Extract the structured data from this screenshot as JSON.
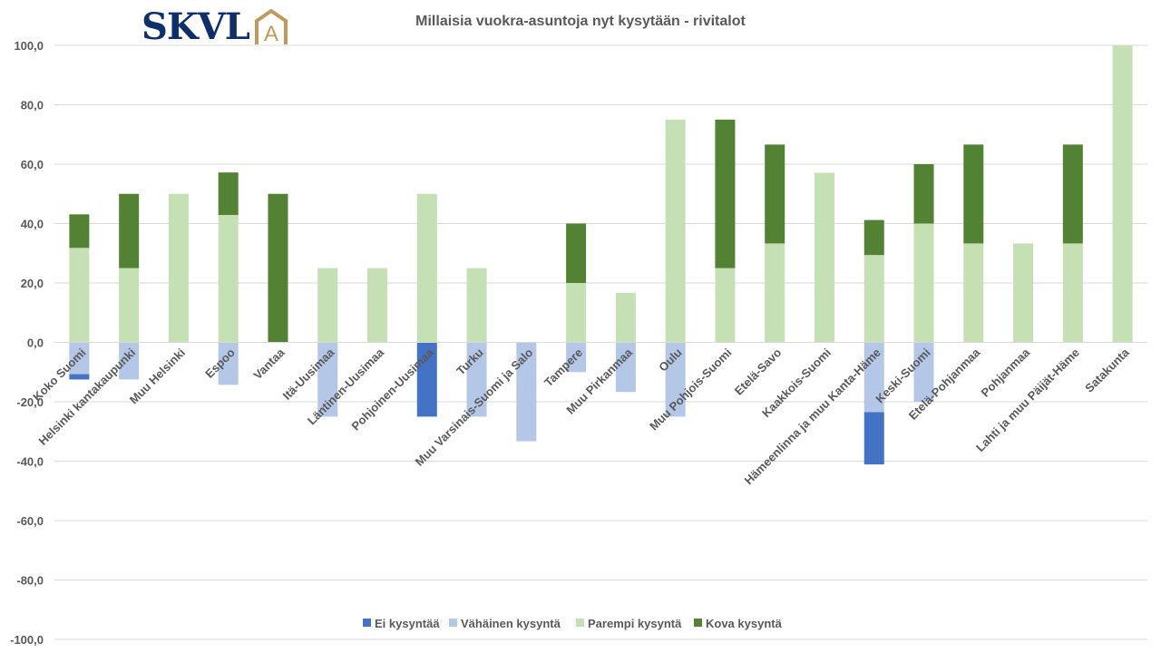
{
  "logo": {
    "text": "SKVL",
    "mark": "A"
  },
  "chart_data": {
    "type": "bar",
    "stacked": true,
    "title": "Millaisia vuokra-asuntoja nyt kysytään - rivitalot",
    "xlabel": "",
    "ylabel": "",
    "ylim": [
      -100,
      100
    ],
    "yticks": [
      100,
      80,
      60,
      40,
      20,
      0,
      -20,
      -40,
      -60,
      -80,
      -100
    ],
    "ytick_labels": [
      "100,0",
      "80,0",
      "60,0",
      "40,0",
      "20,0",
      "0,0",
      "-20,0",
      "-40,0",
      "-60,0",
      "-80,0",
      "-100,0"
    ],
    "grid": true,
    "legend_position": "bottom",
    "categories": [
      "Koko Suomi",
      "Helsinki kantakaupunki",
      "Muu Helsinki",
      "Espoo",
      "Vantaa",
      "Itä-Uusimaa",
      "Läntinen-Uusimaa",
      "Pohjoinen-Uusimaa",
      "Turku",
      "Muu Varsinais-Suomi ja Salo",
      "Tampere",
      "Muu Pirkanmaa",
      "Oulu",
      "Muu Pohjois-Suomi",
      "Etelä-Savo",
      "Kaakkois-Suomi",
      "Hämeenlinna ja muu Kanta-Häme",
      "Keski-Suomi",
      "Etelä-Pohjanmaa",
      "Pohjanmaa",
      "Lahti ja muu Päijät-Häme",
      "Satakunta"
    ],
    "series": [
      {
        "name": "Ei kysyntää",
        "color": "#4472c4",
        "values": [
          -1.8,
          0,
          0,
          0,
          0,
          0,
          0,
          -25,
          0,
          0,
          0,
          0,
          0,
          0,
          0,
          0,
          -17.6,
          0,
          0,
          0,
          0,
          0
        ]
      },
      {
        "name": "Vähäinen kysyntä",
        "color": "#b4c7e7",
        "values": [
          -10.7,
          -12.5,
          0,
          -14.3,
          0,
          -25,
          0,
          0,
          -25,
          -33.3,
          -10,
          -16.7,
          -25,
          0,
          0,
          0,
          -23.5,
          -20,
          0,
          0,
          0,
          0
        ]
      },
      {
        "name": "Parempi kysyntä",
        "color": "#c5e0b4",
        "values": [
          31.8,
          25,
          50,
          42.9,
          0,
          25,
          25,
          50,
          25,
          0,
          20,
          16.7,
          75,
          25,
          33.3,
          57.1,
          29.4,
          40,
          33.3,
          33.3,
          33.3,
          100
        ]
      },
      {
        "name": "Kova kysyntä",
        "color": "#548235",
        "values": [
          11.3,
          25,
          0,
          14.3,
          50,
          0,
          0,
          0,
          0,
          0,
          20,
          0,
          0,
          50,
          33.3,
          0,
          11.8,
          20,
          33.3,
          0,
          33.3,
          0
        ]
      }
    ]
  }
}
